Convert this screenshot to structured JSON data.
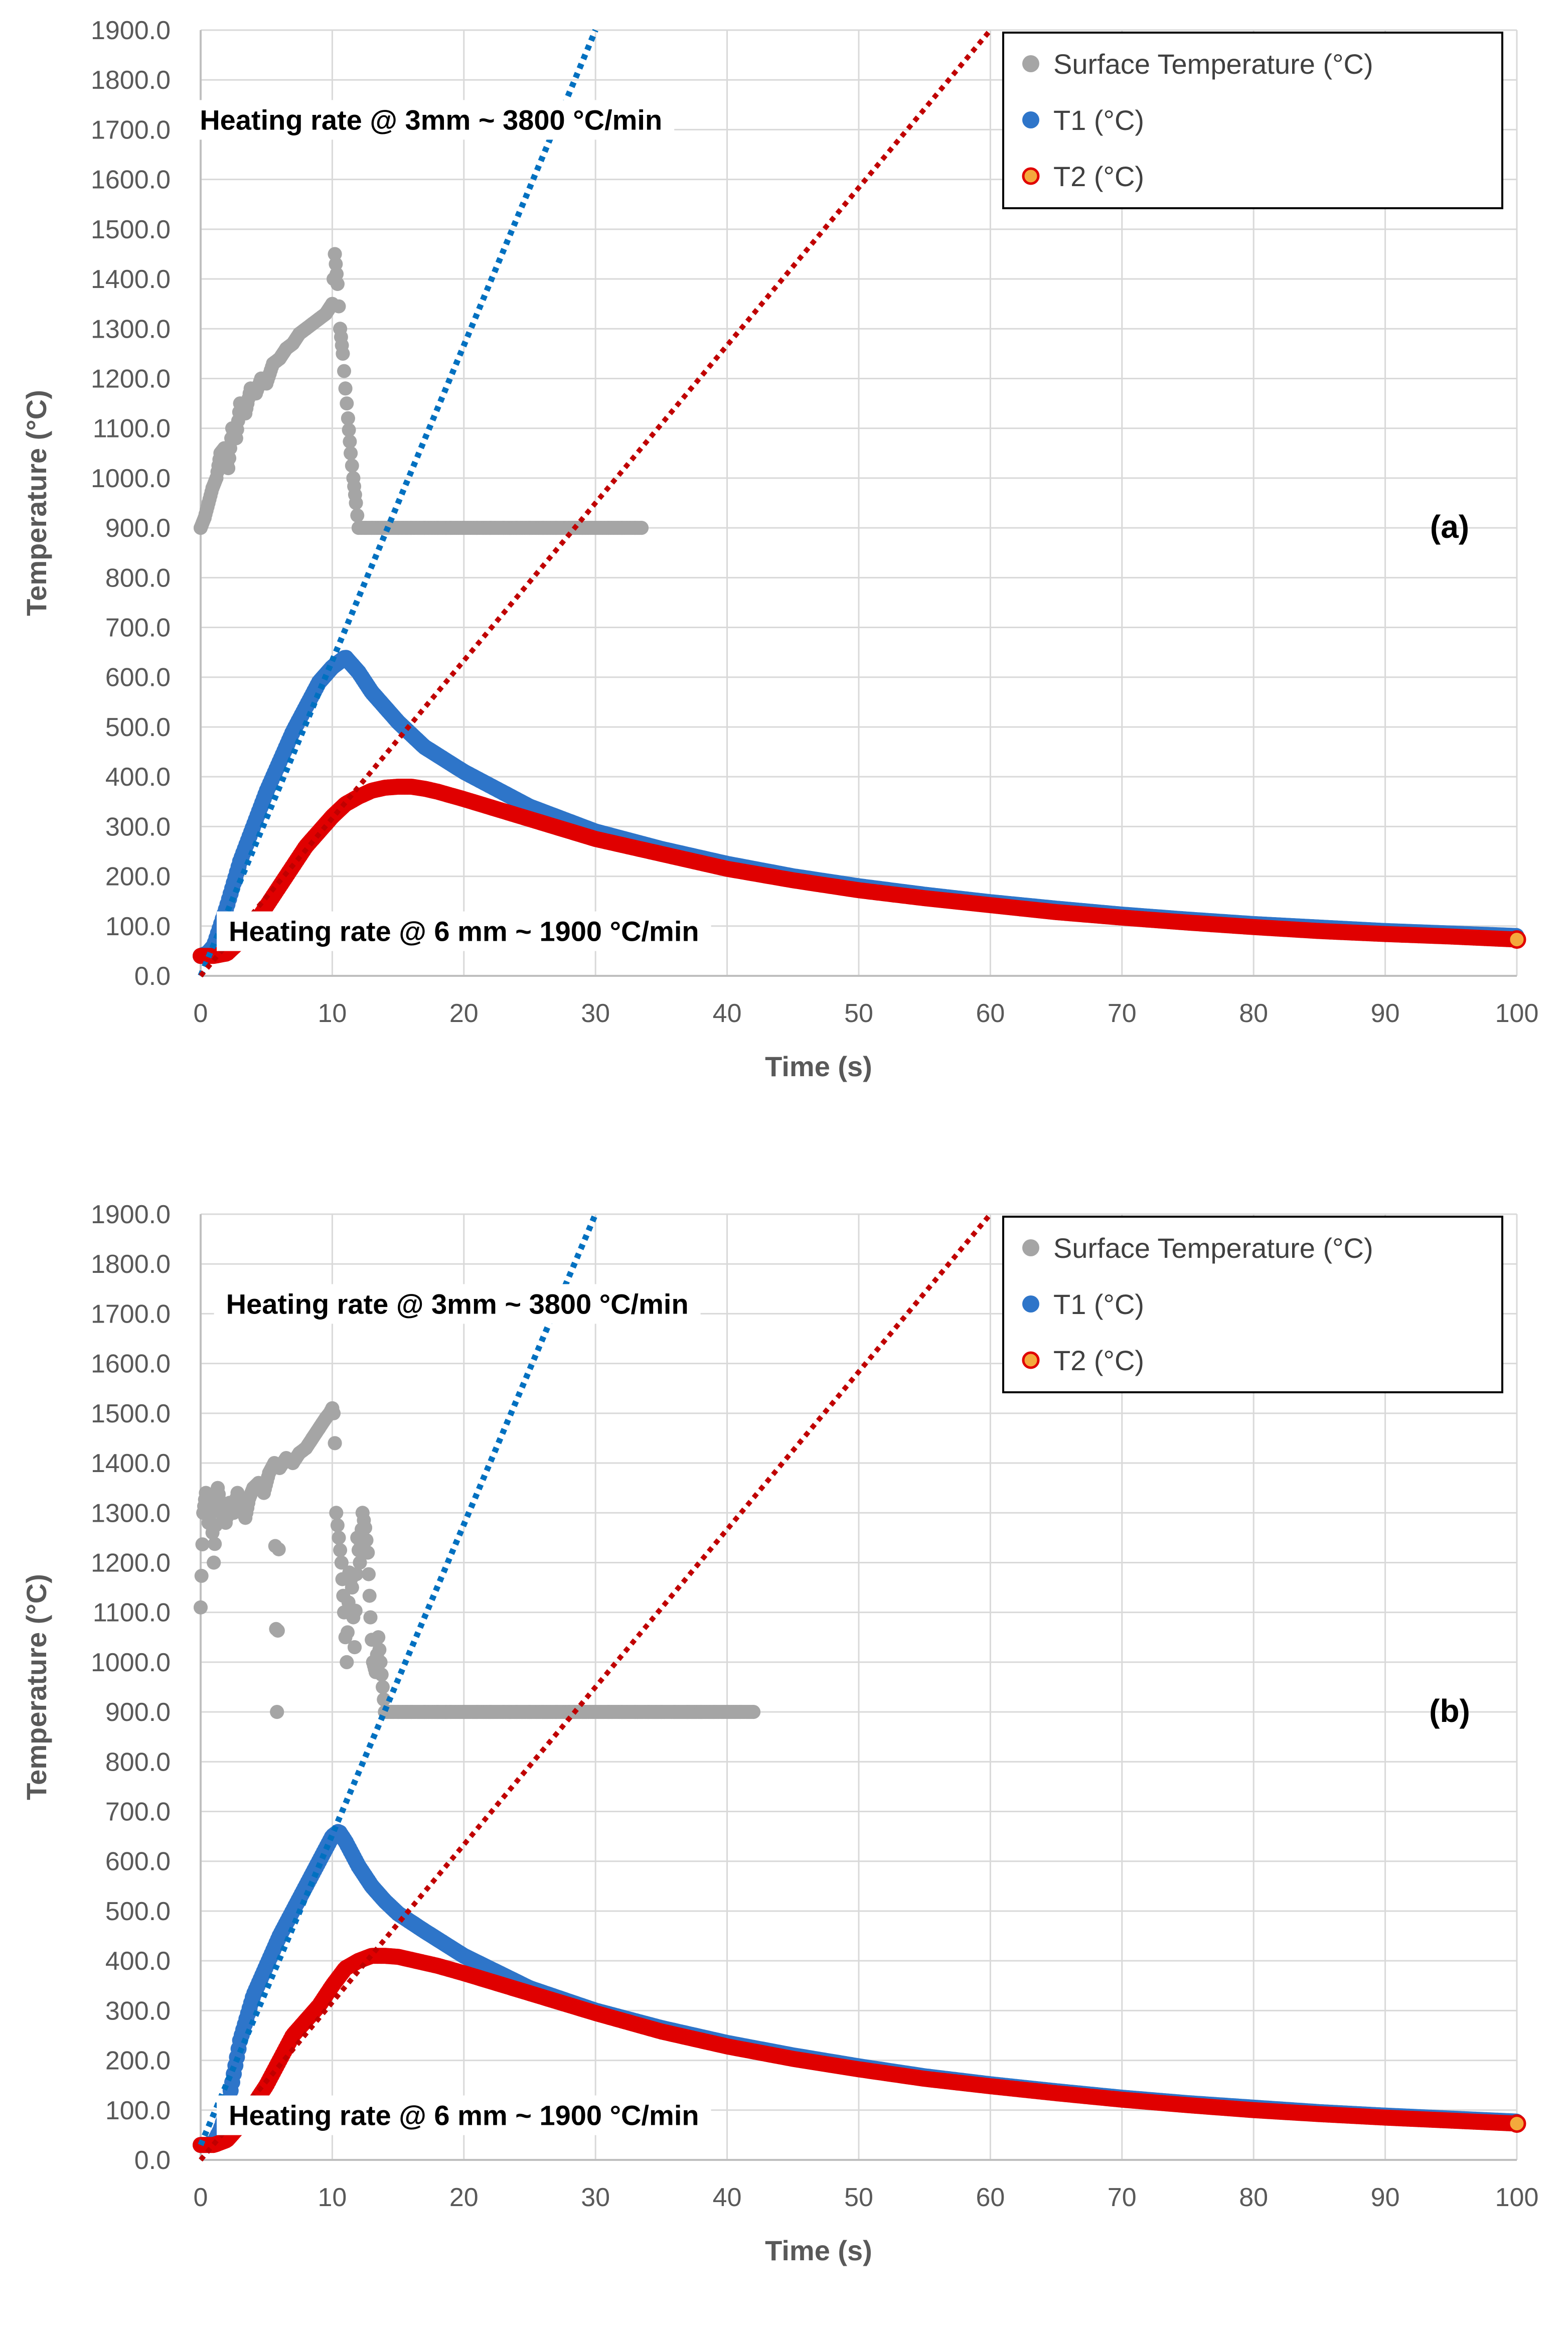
{
  "chart_data": [
    {
      "type": "scatter",
      "panel_label": "(a)",
      "xlabel": "Time (s)",
      "ylabel": "Temperature (°C)",
      "xlim": [
        0,
        100
      ],
      "ylim": [
        0,
        1900
      ],
      "x_ticks": [
        "0",
        "10",
        "20",
        "30",
        "40",
        "50",
        "60",
        "70",
        "80",
        "90",
        "100"
      ],
      "y_ticks": [
        "0.0",
        "100.0",
        "200.0",
        "300.0",
        "400.0",
        "500.0",
        "600.0",
        "700.0",
        "800.0",
        "900.0",
        "1000.0",
        "1100.0",
        "1200.0",
        "1300.0",
        "1400.0",
        "1500.0",
        "1600.0",
        "1700.0",
        "1800.0",
        "1900.0"
      ],
      "grid": true,
      "legend_position": "top-right",
      "series": [
        {
          "name": "Surface Temperature (°C)",
          "color": "#a5a5a5",
          "x": [
            0,
            0.3,
            0.6,
            0.9,
            1.2,
            1.5,
            1.8,
            2.1,
            2.4,
            2.7,
            3.0,
            3.4,
            3.8,
            4.2,
            4.6,
            5.0,
            5.5,
            6.0,
            6.5,
            7.0,
            7.5,
            8.0,
            8.5,
            9.0,
            9.5,
            10.0,
            10.2,
            10.4,
            10.6,
            10.8,
            11.0,
            11.2,
            11.4,
            11.6,
            11.8,
            12.0,
            12.5,
            13,
            14,
            15,
            16,
            17,
            18,
            19,
            20,
            21,
            22,
            23,
            24,
            25,
            26,
            27,
            28,
            29,
            30,
            31,
            32,
            33,
            33.5
          ],
          "y": [
            900,
            920,
            950,
            980,
            1000,
            1050,
            1060,
            1020,
            1100,
            1080,
            1150,
            1130,
            1180,
            1170,
            1200,
            1190,
            1230,
            1240,
            1260,
            1270,
            1290,
            1300,
            1310,
            1320,
            1330,
            1350,
            1450,
            1390,
            1300,
            1250,
            1180,
            1120,
            1050,
            1000,
            950,
            900,
            900,
            900,
            900,
            900,
            900,
            900,
            900,
            900,
            900,
            900,
            900,
            900,
            900,
            900,
            900,
            900,
            900,
            900,
            900,
            900,
            900,
            900,
            900
          ]
        },
        {
          "name": "T1 (°C)",
          "color": "#2e75c9",
          "x": [
            0,
            0.5,
            1,
            1.5,
            2,
            3,
            4,
            5,
            6,
            7,
            8,
            9,
            10,
            11,
            12,
            13,
            15,
            17,
            20,
            25,
            30,
            35,
            40,
            45,
            50,
            55,
            60,
            65,
            70,
            75,
            80,
            85,
            90,
            95,
            100
          ],
          "y": [
            40,
            45,
            60,
            100,
            140,
            230,
            300,
            370,
            430,
            490,
            540,
            590,
            620,
            640,
            610,
            570,
            510,
            460,
            410,
            340,
            290,
            255,
            225,
            200,
            180,
            163,
            148,
            135,
            123,
            113,
            104,
            97,
            90,
            85,
            80
          ]
        },
        {
          "name": "T2 (°C)",
          "color": "#e00000",
          "x": [
            0,
            1,
            2,
            3,
            4,
            5,
            6,
            7,
            8,
            9,
            10,
            11,
            12,
            13,
            14,
            15,
            16,
            17,
            18,
            20,
            25,
            30,
            35,
            40,
            45,
            50,
            55,
            60,
            65,
            70,
            75,
            80,
            85,
            90,
            95,
            100
          ],
          "y": [
            40,
            40,
            45,
            70,
            100,
            140,
            180,
            220,
            260,
            290,
            320,
            345,
            360,
            372,
            378,
            380,
            380,
            376,
            370,
            355,
            315,
            275,
            245,
            215,
            192,
            172,
            156,
            142,
            128,
            117,
            107,
            98,
            90,
            84,
            79,
            73
          ]
        }
      ],
      "trend_lines": [
        {
          "color": "#0070c0",
          "x": [
            0,
            30
          ],
          "y": [
            0,
            1900
          ]
        },
        {
          "color": "#c00000",
          "x": [
            0,
            60
          ],
          "y": [
            0,
            1900
          ]
        }
      ],
      "annotations": [
        {
          "text": "Heating rate @ 3mm ~ 3800 °C/min",
          "x": 17.5,
          "y": 1700
        },
        {
          "text": "Heating rate @ 6 mm ~ 1900 °C/min",
          "x": 20,
          "y": 70
        }
      ]
    },
    {
      "type": "scatter",
      "panel_label": "(b)",
      "xlabel": "Time (s)",
      "ylabel": "Temperature (°C)",
      "xlim": [
        0,
        100
      ],
      "ylim": [
        0,
        1900
      ],
      "x_ticks": [
        "0",
        "10",
        "20",
        "30",
        "40",
        "50",
        "60",
        "70",
        "80",
        "90",
        "100"
      ],
      "y_ticks": [
        "0.0",
        "100.0",
        "200.0",
        "300.0",
        "400.0",
        "500.0",
        "600.0",
        "700.0",
        "800.0",
        "900.0",
        "1000.0",
        "1100.0",
        "1200.0",
        "1300.0",
        "1400.0",
        "1500.0",
        "1600.0",
        "1700.0",
        "1800.0",
        "1900.0"
      ],
      "grid": true,
      "legend_position": "top-right",
      "series": [
        {
          "name": "Surface Temperature (°C)",
          "color": "#a5a5a5",
          "x": [
            0,
            0.2,
            0.4,
            0.6,
            0.8,
            1.0,
            1.3,
            1.6,
            1.9,
            2.2,
            2.5,
            2.8,
            3.1,
            3.4,
            3.7,
            4.0,
            4.4,
            4.8,
            5.2,
            5.6,
            5.8,
            6.0,
            6.5,
            7.0,
            7.5,
            8.0,
            8.5,
            9.0,
            9.5,
            9.8,
            10.0,
            10.1,
            10.2,
            10.3,
            10.5,
            10.7,
            10.9,
            11.1,
            11.3,
            11.5,
            11.7,
            11.9,
            12.1,
            12.3,
            12.5,
            12.7,
            12.9,
            13.1,
            13.3,
            13.5,
            14,
            15,
            16,
            17,
            18,
            19,
            20,
            21,
            22,
            23,
            24,
            25,
            26,
            27,
            28,
            29,
            30,
            31,
            32,
            33,
            34,
            35,
            36,
            37,
            38,
            39,
            40,
            41,
            42
          ],
          "y": [
            1110,
            1300,
            1340,
            1280,
            1320,
            1200,
            1350,
            1300,
            1280,
            1320,
            1300,
            1340,
            1310,
            1290,
            1330,
            1350,
            1360,
            1340,
            1380,
            1400,
            900,
            1390,
            1410,
            1400,
            1420,
            1430,
            1450,
            1470,
            1490,
            1500,
            1510,
            1500,
            1440,
            1300,
            1250,
            1200,
            1100,
            1000,
            1180,
            1150,
            1030,
            1250,
            1200,
            1300,
            1270,
            1220,
            1090,
            1000,
            980,
            1050,
            900,
            900,
            900,
            900,
            900,
            900,
            900,
            900,
            900,
            900,
            900,
            900,
            900,
            900,
            900,
            900,
            900,
            900,
            900,
            900,
            900,
            900,
            900,
            900,
            900,
            900,
            900,
            900,
            900
          ]
        },
        {
          "name": "T1 (°C)",
          "color": "#2e75c9",
          "x": [
            0,
            0.5,
            1,
            1.5,
            2,
            2.5,
            3,
            4,
            5,
            6,
            7,
            8,
            9,
            10,
            10.5,
            11,
            12,
            13,
            14,
            15,
            17,
            20,
            25,
            30,
            35,
            40,
            45,
            50,
            55,
            60,
            65,
            70,
            75,
            80,
            85,
            90,
            95,
            100
          ],
          "y": [
            30,
            30,
            35,
            60,
            100,
            170,
            240,
            330,
            390,
            450,
            500,
            550,
            600,
            650,
            660,
            640,
            590,
            550,
            520,
            495,
            460,
            410,
            345,
            300,
            265,
            235,
            210,
            188,
            168,
            152,
            138,
            125,
            114,
            105,
            96,
            89,
            83,
            77
          ]
        },
        {
          "name": "T2 (°C)",
          "color": "#e00000",
          "x": [
            0,
            1,
            2,
            3,
            4,
            5,
            6,
            7,
            8,
            9,
            10,
            11,
            12,
            13,
            14,
            15,
            16,
            18,
            20,
            25,
            30,
            35,
            40,
            45,
            50,
            55,
            60,
            65,
            70,
            75,
            80,
            85,
            90,
            95,
            100
          ],
          "y": [
            30,
            30,
            40,
            70,
            110,
            150,
            200,
            250,
            280,
            310,
            350,
            385,
            400,
            410,
            410,
            408,
            402,
            390,
            375,
            335,
            295,
            258,
            228,
            203,
            182,
            163,
            148,
            134,
            121,
            110,
            100,
            92,
            85,
            79,
            73
          ]
        }
      ],
      "trend_lines": [
        {
          "color": "#0070c0",
          "x": [
            0,
            30
          ],
          "y": [
            30,
            1900
          ]
        },
        {
          "color": "#c00000",
          "x": [
            0,
            60
          ],
          "y": [
            0,
            1900
          ]
        }
      ],
      "annotations": [
        {
          "text": "Heating rate @ 3mm ~ 3800 °C/min",
          "x": 19.5,
          "y": 1700
        },
        {
          "text": "Heating rate @ 6 mm ~ 1900 °C/min",
          "x": 20,
          "y": 70
        }
      ]
    }
  ]
}
